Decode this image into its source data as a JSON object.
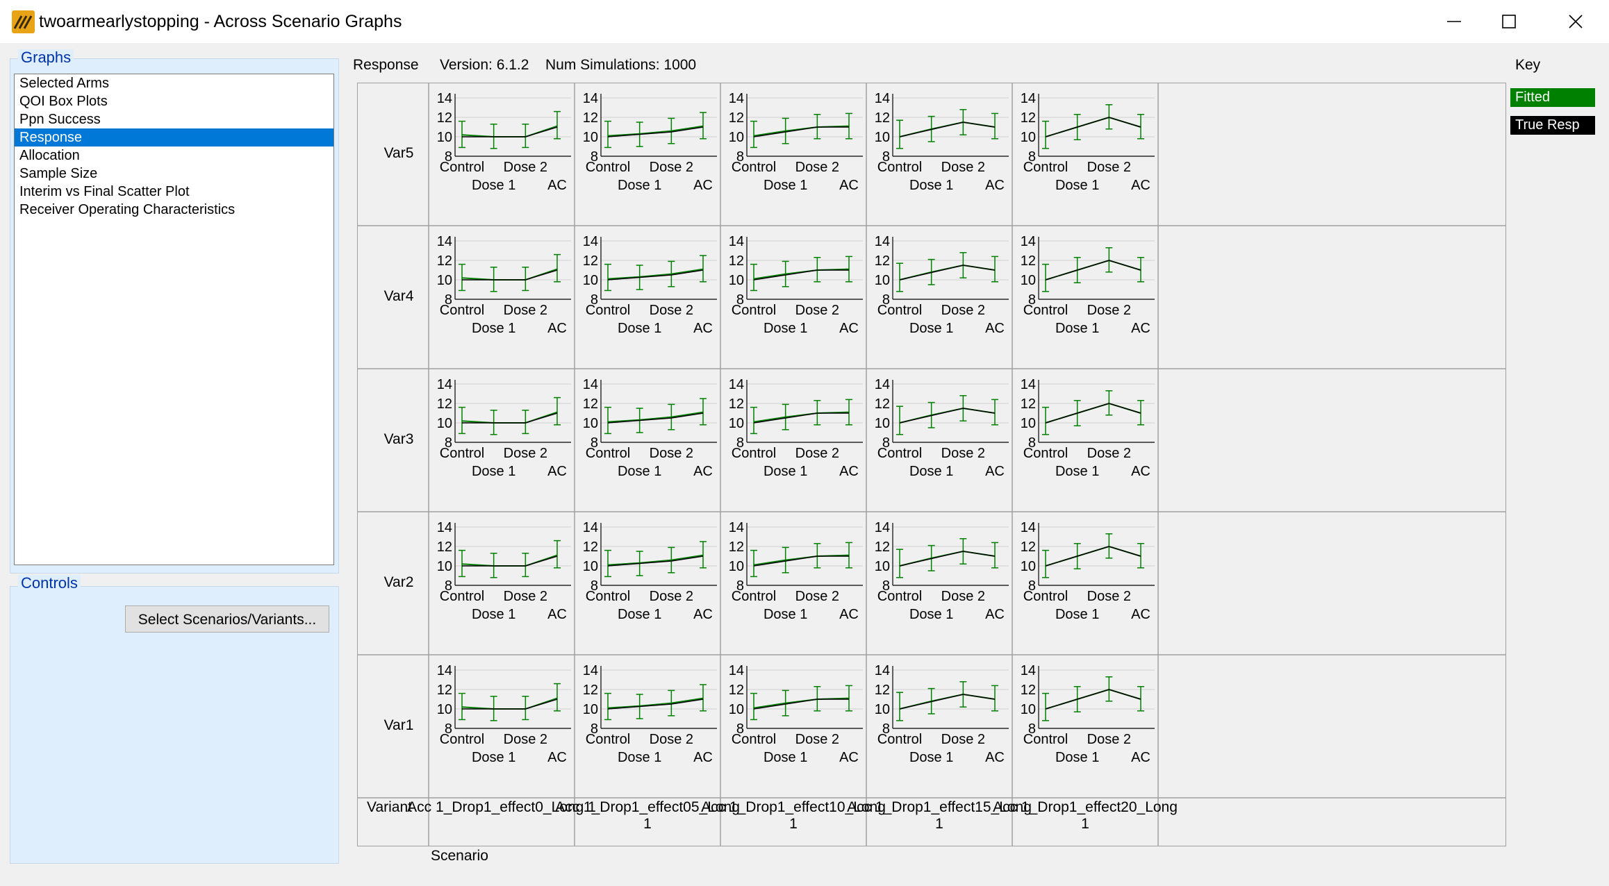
{
  "window": {
    "title": "twoarmearlystopping - Across Scenario Graphs",
    "icon": "app-logo-icon",
    "controls": [
      "minimize-icon",
      "maximize-icon",
      "close-icon"
    ]
  },
  "graphs_panel": {
    "title": "Graphs",
    "items": [
      {
        "label": "Selected Arms",
        "selected": false
      },
      {
        "label": "QOI Box Plots",
        "selected": false
      },
      {
        "label": "Ppn Success",
        "selected": false
      },
      {
        "label": "Response",
        "selected": true
      },
      {
        "label": "Allocation",
        "selected": false
      },
      {
        "label": "Sample Size",
        "selected": false
      },
      {
        "label": "Interim vs Final Scatter Plot",
        "selected": false
      },
      {
        "label": "Receiver Operating Characteristics",
        "selected": false
      }
    ]
  },
  "controls_panel": {
    "title": "Controls",
    "select_button": "Select Scenarios/Variants..."
  },
  "header": {
    "graph_name": "Response",
    "version": "Version: 6.1.2",
    "num_simulations": "Num Simulations: 1000",
    "key_label": "Key"
  },
  "key": {
    "fitted": "Fitted",
    "true_resp": "True Resp"
  },
  "footer": {
    "variant_label": "Variant",
    "scenario_label": "Scenario"
  },
  "colors": {
    "fitted": "#008000",
    "true_resp": "#000000",
    "selection": "#0078d7",
    "panel_bg": "#dfeefc",
    "group_title": "#0033aa",
    "icon_bg": "#e8a317"
  },
  "chart_data": {
    "type": "line",
    "rows": [
      "Var5",
      "Var4",
      "Var3",
      "Var2",
      "Var1"
    ],
    "columns": [
      {
        "line1": "Acc 1_Drop1_effect0_Long 1",
        "line2": ""
      },
      {
        "line1": "Acc 1_Drop1_effect05_Long",
        "line2": "1"
      },
      {
        "line1": "Acc 1_Drop1_effect10_Long",
        "line2": "1"
      },
      {
        "line1": "Acc 1_Drop1_effect15_Long",
        "line2": "1"
      },
      {
        "line1": "Acc 1_Drop1_effect20_Long",
        "line2": "1"
      }
    ],
    "categories": [
      "Control",
      "Dose 1",
      "Dose 2",
      "AC"
    ],
    "ylim": [
      8,
      14
    ],
    "yticks": [
      8,
      10,
      12,
      14
    ],
    "grid": true,
    "true_response": [
      [
        10,
        10,
        10,
        11
      ],
      [
        10,
        10.25,
        10.5,
        11
      ],
      [
        10,
        10.5,
        11,
        11
      ],
      [
        10,
        10.75,
        11.5,
        11
      ],
      [
        10,
        11,
        12,
        11
      ]
    ],
    "fitted_mean": [
      [
        10.2,
        10.0,
        10.0,
        11.1
      ],
      [
        10.1,
        10.3,
        10.6,
        11.1
      ],
      [
        10.1,
        10.6,
        11.0,
        11.1
      ],
      [
        10.0,
        10.8,
        11.5,
        11.0
      ],
      [
        10.0,
        11.0,
        12.0,
        11.0
      ]
    ],
    "fitted_low": [
      [
        8.9,
        8.8,
        8.9,
        9.8
      ],
      [
        8.9,
        9.0,
        9.3,
        9.8
      ],
      [
        8.9,
        9.3,
        9.8,
        9.8
      ],
      [
        8.8,
        9.5,
        10.2,
        9.8
      ],
      [
        8.8,
        9.7,
        10.8,
        9.8
      ]
    ],
    "fitted_high": [
      [
        11.6,
        11.3,
        11.3,
        12.6
      ],
      [
        11.6,
        11.5,
        11.9,
        12.5
      ],
      [
        11.6,
        11.9,
        12.3,
        12.4
      ],
      [
        11.7,
        12.1,
        12.8,
        12.4
      ],
      [
        11.6,
        12.3,
        13.3,
        12.3
      ]
    ]
  }
}
